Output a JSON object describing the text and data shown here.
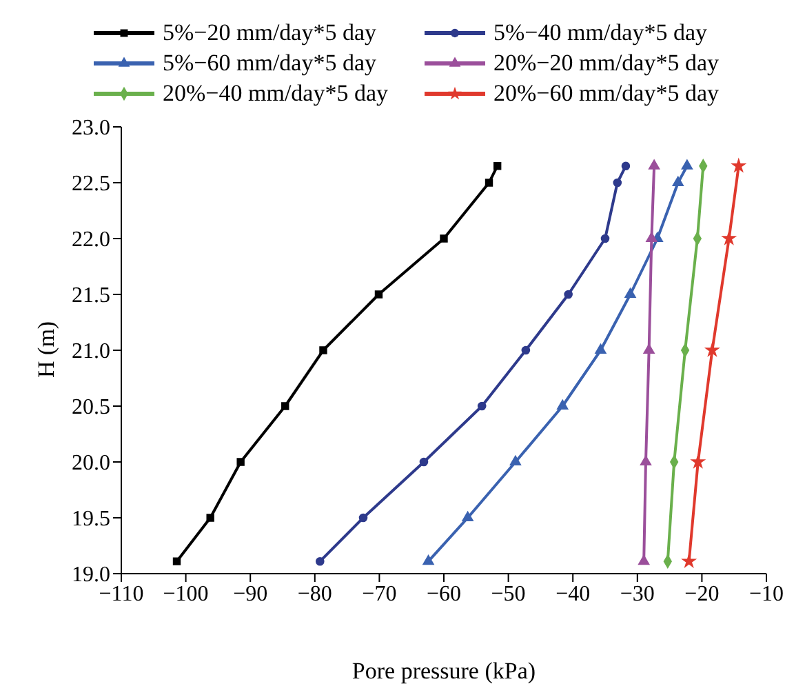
{
  "chart_data": {
    "type": "line",
    "xlabel": "Pore pressure (kPa)",
    "ylabel": "H (m)",
    "xlim": [
      -110,
      -10
    ],
    "xticks": [
      -110,
      -100,
      -90,
      -80,
      -70,
      -60,
      -50,
      -40,
      -30,
      -20,
      -10
    ],
    "ylim": [
      19,
      23
    ],
    "yticks": [
      {
        "value": 19,
        "label": "19.0"
      },
      19.5,
      {
        "value": 20,
        "label": "20.0"
      },
      20.5,
      {
        "value": 21,
        "label": "21.0"
      },
      21.5,
      {
        "value": 22,
        "label": "22.0"
      },
      22.5,
      {
        "value": 23,
        "label": "23.0"
      }
    ],
    "grid": false,
    "legend": "top",
    "line_style": "solid",
    "series": [
      {
        "name": "5%−20 mm/day*5 day",
        "color": "#000000",
        "marker": "square",
        "x": [
          -101.4,
          -96.2,
          -91.5,
          -84.6,
          -78.7,
          -70.1,
          -60,
          -53,
          -51.7
        ],
        "values": [
          19.11,
          19.5,
          20,
          20.5,
          21,
          21.5,
          22,
          22.5,
          22.65
        ]
      },
      {
        "name": "5%−40 mm/day*5 day",
        "color": "#2e3a8c",
        "marker": "circle",
        "x": [
          -79.2,
          -72.5,
          -63.1,
          -54.1,
          -47.3,
          -40.7,
          -35,
          -33.1,
          -31.8
        ],
        "values": [
          19.11,
          19.5,
          20,
          20.5,
          21,
          21.5,
          22,
          22.5,
          22.65
        ]
      },
      {
        "name": "5%−60 mm/day*5 day",
        "color": "#3a62b0",
        "marker": "triangle",
        "x": [
          -62.4,
          -56.3,
          -48.9,
          -41.6,
          -35.7,
          -31.1,
          -26.9,
          -23.7,
          -22.3
        ],
        "values": [
          19.11,
          19.5,
          20,
          20.5,
          21,
          21.5,
          22,
          22.5,
          22.65
        ]
      },
      {
        "name": "20%−20 mm/day*5 day",
        "color": "#9b4f9b",
        "marker": "triangle",
        "x": [
          -29,
          -28.7,
          -28.2,
          -27.8,
          -27.4
        ],
        "values": [
          19.11,
          20,
          21,
          22,
          22.65
        ]
      },
      {
        "name": "20%−40 mm/day*5 day",
        "color": "#6ab04c",
        "marker": "diamond",
        "x": [
          -25.3,
          -24.3,
          -22.6,
          -20.7,
          -19.8
        ],
        "values": [
          19.11,
          20,
          21,
          22,
          22.65
        ]
      },
      {
        "name": "20%−60 mm/day*5 day",
        "color": "#e0392d",
        "marker": "star",
        "x": [
          -22,
          -20.6,
          -18.4,
          -15.8,
          -14.3
        ],
        "values": [
          19.11,
          20,
          21,
          22,
          22.65
        ]
      }
    ]
  }
}
